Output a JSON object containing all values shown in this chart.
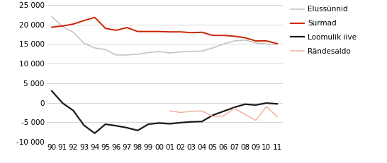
{
  "years": [
    1990,
    1991,
    1992,
    1993,
    1994,
    1995,
    1996,
    1997,
    1998,
    1999,
    2000,
    2001,
    2002,
    2003,
    2004,
    2005,
    2006,
    2007,
    2008,
    2009,
    2010,
    2011
  ],
  "elussynnid": [
    22000,
    19500,
    18000,
    15200,
    14000,
    13600,
    12200,
    12200,
    12400,
    12800,
    13100,
    12700,
    13000,
    13100,
    13200,
    14000,
    15000,
    15800,
    16000,
    15300,
    15000,
    14900
  ],
  "surmad": [
    19300,
    19600,
    20100,
    21000,
    21800,
    19000,
    18500,
    19200,
    18200,
    18200,
    18200,
    18100,
    18100,
    17900,
    18000,
    17200,
    17200,
    17000,
    16600,
    15800,
    15800,
    15100
  ],
  "loomulik_iive": [
    3000,
    -100,
    -2000,
    -5800,
    -7800,
    -5500,
    -5900,
    -6400,
    -7100,
    -5500,
    -5200,
    -5400,
    -5100,
    -4900,
    -4800,
    -3200,
    -2200,
    -1200,
    -400,
    -600,
    -100,
    -300
  ],
  "randesaldo": [
    null,
    null,
    null,
    null,
    null,
    null,
    null,
    null,
    null,
    null,
    null,
    -2100,
    -2500,
    -2200,
    -2100,
    -3500,
    -3400,
    -1400,
    -3000,
    -4500,
    -1000,
    -3600
  ],
  "elussynnid_color": "#c0c0c0",
  "surmad_color": "#cc2200",
  "loomulik_iive_color": "#1a1a1a",
  "randesaldo_color": "#f0b0a0",
  "ylim": [
    -10000,
    25000
  ],
  "yticks": [
    -10000,
    -5000,
    0,
    5000,
    10000,
    15000,
    20000,
    25000
  ],
  "ytick_labels": [
    "-10 000",
    "-5 000",
    "0",
    "5 000",
    "10 000",
    "15 000",
    "20 000",
    "25 000"
  ],
  "xtick_labels": [
    "90",
    "91",
    "92",
    "93",
    "94",
    "95",
    "96",
    "97",
    "98",
    "99",
    "00",
    "01",
    "02",
    "03",
    "04",
    "05",
    "06",
    "07",
    "08",
    "09",
    "10",
    "11"
  ],
  "legend_labels": [
    "Elussünnid",
    "Surmad",
    "Loomulik iive",
    "Rändesaldo"
  ],
  "legend_colors": [
    "#c0c0c0",
    "#cc2200",
    "#1a1a1a",
    "#f0b0a0"
  ],
  "background_color": "#ffffff",
  "grid_color": "#d0d0d0",
  "fontsize": 7.5
}
